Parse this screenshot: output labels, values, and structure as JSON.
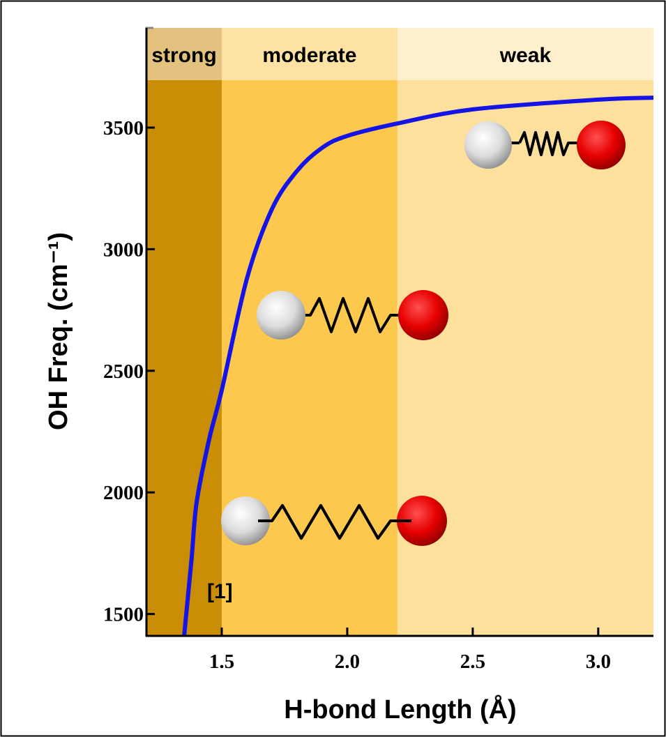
{
  "chart_data": {
    "type": "line",
    "xlabel": "H-bond Length (Å)",
    "ylabel": "OH Freq. (cm⁻¹)",
    "annotation": "[1]",
    "xlim": [
      1.2,
      3.22
    ],
    "ylim": [
      1410,
      3695
    ],
    "xticks": [
      1.5,
      {
        "value": 2,
        "label": "2.0"
      },
      2.5,
      {
        "value": 3,
        "label": "3.0"
      }
    ],
    "yticks": [
      1500,
      2000,
      2500,
      3000,
      3500
    ],
    "regions": [
      {
        "name": "strong",
        "range": [
          1.2,
          1.5
        ],
        "color": "#c98d06",
        "label_color": "#e2c27e"
      },
      {
        "name": "moderate",
        "range": [
          1.5,
          2.2
        ],
        "color": "#fcc84e",
        "label_color": "#fde2a4"
      },
      {
        "name": "weak",
        "range": [
          2.2,
          3.22
        ],
        "color": "#fde09b",
        "label_color": "#fef0cd"
      }
    ],
    "x": [
      1.35,
      1.38,
      1.4,
      1.45,
      1.5,
      1.6,
      1.7,
      1.8,
      1.9,
      2.0,
      2.2,
      2.5,
      3.0,
      3.22
    ],
    "series": [
      {
        "color": "#1414e6",
        "values": [
          1408,
          1730,
          1960,
          2219,
          2420,
          2878,
          3165,
          3322,
          3417,
          3466,
          3517,
          3575,
          3615,
          3623
        ]
      }
    ]
  }
}
